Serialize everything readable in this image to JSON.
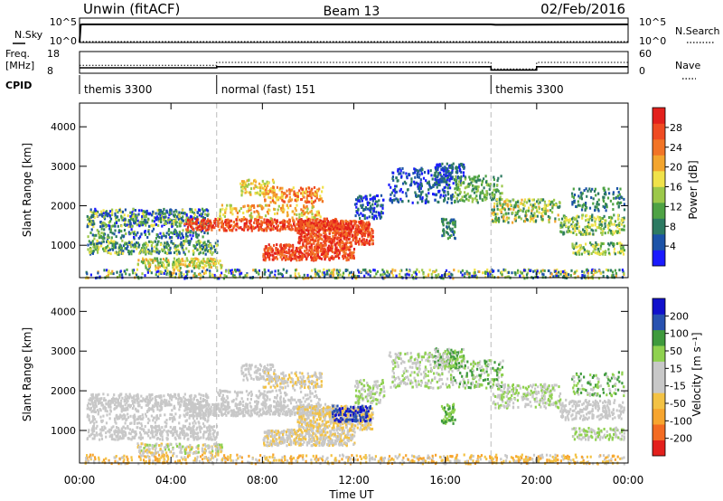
{
  "header": {
    "station": "Unwin (fitACF)",
    "beam": "Beam 13",
    "date": "02/Feb/2016"
  },
  "panels": {
    "nsky": {
      "label": "N.Sky",
      "tick_hi": "10^5",
      "tick_lo": "10^0",
      "right_label": "N.Search",
      "right_tick_hi": "10^5",
      "right_tick_lo": "10^0"
    },
    "freq": {
      "label_line1": "Freq.",
      "label_line2": "[MHz]",
      "tick_hi": "18",
      "tick_lo": "8",
      "right_label": "Nave",
      "right_tick_hi": "60",
      "right_tick_lo": "0"
    },
    "cpid": {
      "label": "CPID"
    }
  },
  "chart_data": [
    {
      "type": "line",
      "name": "nsky_nsearch",
      "x_hours": [
        0,
        0.05,
        0.1,
        12,
        18,
        18.2,
        24
      ],
      "nsky_log10": [
        0,
        4.9,
        5.0,
        5.0,
        5.0,
        4.9,
        5.0
      ],
      "nsearch_log10": [
        0,
        0,
        0,
        0,
        0,
        0,
        0
      ]
    },
    {
      "type": "line",
      "name": "freq_nave",
      "freq_mhz": {
        "x": [
          0,
          6,
          6,
          18,
          18,
          20,
          20,
          24
        ],
        "y": [
          10.5,
          10.5,
          11,
          11,
          9.5,
          9.5,
          11,
          11
        ]
      },
      "nave": {
        "x": [
          0,
          6,
          6,
          18,
          18,
          20,
          20,
          24
        ],
        "y": [
          22,
          22,
          30,
          30,
          12,
          12,
          30,
          30
        ]
      },
      "ylim_freq": [
        8,
        18
      ],
      "ylim_nave": [
        0,
        60
      ]
    },
    {
      "type": "table",
      "name": "cpid",
      "segments": [
        {
          "start": 0,
          "end": 6,
          "label": "themis 3300"
        },
        {
          "start": 6,
          "end": 18,
          "label": "normal (fast) 151"
        },
        {
          "start": 18,
          "end": 24,
          "label": "themis 3300"
        }
      ]
    },
    {
      "type": "heatmap",
      "name": "power",
      "ylabel": "Slant Range [km]",
      "xlim_hours": [
        0,
        24
      ],
      "ylim_km": [
        180,
        4600
      ],
      "yticks": [
        "1000",
        "2000",
        "3000",
        "4000"
      ],
      "colorbar": {
        "label": "Power [dB]",
        "ticks": [
          "4",
          "8",
          "12",
          "16",
          "20",
          "24",
          "28"
        ],
        "range": [
          0,
          30
        ]
      }
    },
    {
      "type": "heatmap",
      "name": "velocity",
      "ylabel": "Slant Range [km]",
      "xlim_hours": [
        0,
        24
      ],
      "ylim_km": [
        180,
        4600
      ],
      "yticks": [
        "1000",
        "2000",
        "3000",
        "4000"
      ],
      "colorbar": {
        "label": "Velocity [m s⁻¹]",
        "ticks": [
          "-200",
          "-100",
          "-50",
          "-15",
          "15",
          "50",
          "100",
          "200"
        ]
      }
    }
  ],
  "xaxis": {
    "ticks": [
      "00:00",
      "04:00",
      "08:00",
      "12:00",
      "16:00",
      "20:00",
      "00:00"
    ],
    "label": "Time UT"
  },
  "colors": {
    "power": [
      "#1a1aff",
      "#1c53a8",
      "#2d7a62",
      "#4ea244",
      "#9cc84a",
      "#f0e24a",
      "#f3a52e",
      "#f27426",
      "#ef4b22",
      "#e3201c"
    ],
    "velocity": [
      "#e3201c",
      "#f36b22",
      "#f7a52f",
      "#f3c244",
      "#c8c8c8",
      "#c8c8c8",
      "#8fd14f",
      "#3f9a3d",
      "#2852b0",
      "#1111cc"
    ]
  }
}
